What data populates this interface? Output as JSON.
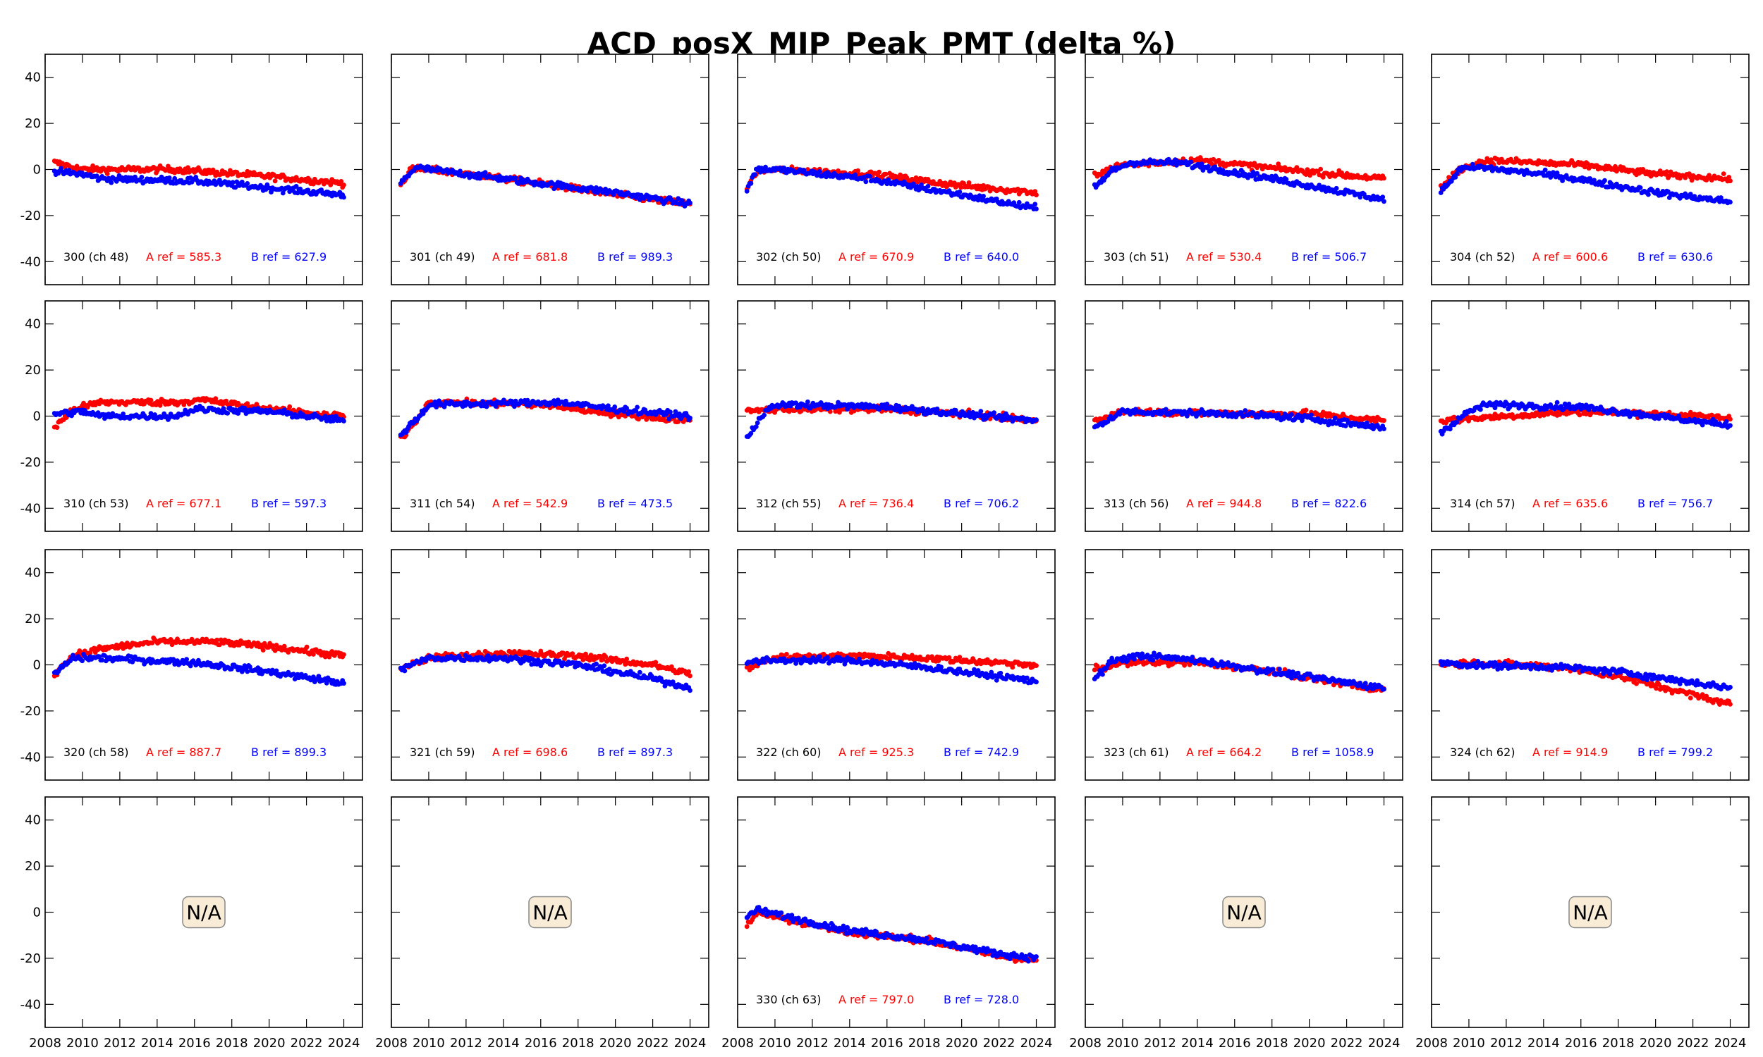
{
  "chart_data": {
    "type": "scatter",
    "title": "ACD_posX_MIP_Peak_PMT (delta %)",
    "xlim": [
      2008,
      2025
    ],
    "ylim": [
      -50,
      50
    ],
    "xticks": [
      "2008",
      "2010",
      "2012",
      "2014",
      "2016",
      "2018",
      "2020",
      "2022",
      "2024"
    ],
    "yticks": [
      "-40",
      "-20",
      "0",
      "20",
      "40"
    ],
    "grid": false,
    "colors": {
      "A": "#ff0000",
      "B": "#0000ff",
      "text": "#000000",
      "na_fill": "#f8ecd6",
      "na_border": "#888888"
    },
    "na_text": "N/A",
    "panels": [
      {
        "label": "300 (ch 48)",
        "a_ref": "A ref = 585.3",
        "b_ref": "B ref = 627.9",
        "A": [
          [
            2008.5,
            3
          ],
          [
            2010,
            0
          ],
          [
            2015,
            0
          ],
          [
            2020,
            -3
          ],
          [
            2024,
            -6
          ]
        ],
        "B": [
          [
            2008.5,
            -1
          ],
          [
            2010,
            -2
          ],
          [
            2011,
            -4
          ],
          [
            2016,
            -5
          ],
          [
            2020,
            -8
          ],
          [
            2024,
            -11
          ]
        ]
      },
      {
        "label": "301 (ch 49)",
        "a_ref": "A ref = 681.8",
        "b_ref": "B ref = 989.3",
        "A": [
          [
            2008.5,
            -7
          ],
          [
            2009,
            0
          ],
          [
            2010,
            0
          ],
          [
            2016,
            -6
          ],
          [
            2020,
            -11
          ],
          [
            2024,
            -15
          ]
        ],
        "B": [
          [
            2008.5,
            -6
          ],
          [
            2009.3,
            1
          ],
          [
            2010,
            0
          ],
          [
            2016,
            -6
          ],
          [
            2020,
            -10
          ],
          [
            2024,
            -15
          ]
        ]
      },
      {
        "label": "302 (ch 50)",
        "a_ref": "A ref = 670.9",
        "b_ref": "B ref = 640.0",
        "A": [
          [
            2008.5,
            -8
          ],
          [
            2009,
            -1
          ],
          [
            2010,
            0
          ],
          [
            2015,
            -2
          ],
          [
            2020,
            -7
          ],
          [
            2024,
            -10
          ]
        ],
        "B": [
          [
            2008.5,
            -9
          ],
          [
            2009,
            0
          ],
          [
            2010,
            0
          ],
          [
            2015,
            -4
          ],
          [
            2020,
            -11
          ],
          [
            2024,
            -17
          ]
        ]
      },
      {
        "label": "303 (ch 51)",
        "a_ref": "A ref = 530.4",
        "b_ref": "B ref = 506.7",
        "A": [
          [
            2008.5,
            -2
          ],
          [
            2010,
            2
          ],
          [
            2014,
            4
          ],
          [
            2020,
            -1
          ],
          [
            2024,
            -4
          ]
        ],
        "B": [
          [
            2008.5,
            -8
          ],
          [
            2009.5,
            0
          ],
          [
            2010.5,
            3
          ],
          [
            2013,
            3
          ],
          [
            2018,
            -4
          ],
          [
            2024,
            -13
          ]
        ]
      },
      {
        "label": "304 (ch 52)",
        "a_ref": "A ref = 600.6",
        "b_ref": "B ref = 630.6",
        "A": [
          [
            2008.5,
            -8
          ],
          [
            2009.5,
            0
          ],
          [
            2011,
            4
          ],
          [
            2016,
            2
          ],
          [
            2020,
            -2
          ],
          [
            2024,
            -4
          ]
        ],
        "B": [
          [
            2008.5,
            -10
          ],
          [
            2009.5,
            0
          ],
          [
            2010.5,
            1
          ],
          [
            2015,
            -3
          ],
          [
            2020,
            -10
          ],
          [
            2024,
            -14
          ]
        ]
      },
      {
        "label": "310 (ch 53)",
        "a_ref": "A ref = 677.1",
        "b_ref": "B ref = 597.3",
        "A": [
          [
            2008.5,
            -5
          ],
          [
            2009.5,
            3
          ],
          [
            2011,
            6
          ],
          [
            2015,
            6
          ],
          [
            2016.5,
            7
          ],
          [
            2020,
            3
          ],
          [
            2024,
            0
          ]
        ],
        "B": [
          [
            2008.5,
            1
          ],
          [
            2010,
            2
          ],
          [
            2011,
            0
          ],
          [
            2015,
            0
          ],
          [
            2016,
            3
          ],
          [
            2020,
            2
          ],
          [
            2024,
            -2
          ]
        ]
      },
      {
        "label": "311 (ch 54)",
        "a_ref": "A ref = 542.9",
        "b_ref": "B ref = 473.5",
        "A": [
          [
            2008.5,
            -10
          ],
          [
            2009.5,
            0
          ],
          [
            2010,
            6
          ],
          [
            2016,
            5
          ],
          [
            2020,
            1
          ],
          [
            2024,
            -2
          ]
        ],
        "B": [
          [
            2008.5,
            -8
          ],
          [
            2009.5,
            0
          ],
          [
            2010,
            5
          ],
          [
            2017,
            6
          ],
          [
            2020,
            3
          ],
          [
            2024,
            0
          ]
        ]
      },
      {
        "label": "312 (ch 55)",
        "a_ref": "A ref = 736.4",
        "b_ref": "B ref = 706.2",
        "A": [
          [
            2008.5,
            2
          ],
          [
            2010,
            3
          ],
          [
            2016,
            3
          ],
          [
            2020,
            1
          ],
          [
            2024,
            -2
          ]
        ],
        "B": [
          [
            2008.5,
            -10
          ],
          [
            2009.5,
            3
          ],
          [
            2010.5,
            5
          ],
          [
            2016,
            4
          ],
          [
            2020,
            1
          ],
          [
            2024,
            -2
          ]
        ]
      },
      {
        "label": "313 (ch 56)",
        "a_ref": "A ref = 944.8",
        "b_ref": "B ref = 822.6",
        "A": [
          [
            2008.5,
            -2
          ],
          [
            2010,
            2
          ],
          [
            2016,
            1
          ],
          [
            2020,
            1
          ],
          [
            2024,
            -2
          ]
        ],
        "B": [
          [
            2008.5,
            -5
          ],
          [
            2010,
            2
          ],
          [
            2016,
            1
          ],
          [
            2020,
            -1
          ],
          [
            2024,
            -5
          ]
        ]
      },
      {
        "label": "314 (ch 57)",
        "a_ref": "A ref = 635.6",
        "b_ref": "B ref = 756.7",
        "A": [
          [
            2008.5,
            -2
          ],
          [
            2010,
            -1
          ],
          [
            2016,
            2
          ],
          [
            2020,
            1
          ],
          [
            2024,
            -1
          ]
        ],
        "B": [
          [
            2008.5,
            -7
          ],
          [
            2010,
            2
          ],
          [
            2011,
            5
          ],
          [
            2016,
            4
          ],
          [
            2020,
            0
          ],
          [
            2024,
            -4
          ]
        ]
      },
      {
        "label": "320 (ch 58)",
        "a_ref": "A ref = 887.7",
        "b_ref": "B ref = 899.3",
        "A": [
          [
            2008.5,
            -4
          ],
          [
            2009.5,
            4
          ],
          [
            2011,
            7
          ],
          [
            2014,
            10
          ],
          [
            2017,
            10
          ],
          [
            2020,
            8
          ],
          [
            2024,
            4
          ]
        ],
        "B": [
          [
            2008.5,
            -4
          ],
          [
            2009.5,
            3
          ],
          [
            2011,
            3
          ],
          [
            2016,
            1
          ],
          [
            2020,
            -3
          ],
          [
            2024,
            -8
          ]
        ]
      },
      {
        "label": "321 (ch 59)",
        "a_ref": "A ref = 698.6",
        "b_ref": "B ref = 897.3",
        "A": [
          [
            2008.5,
            -2
          ],
          [
            2010,
            3
          ],
          [
            2014,
            5
          ],
          [
            2018,
            4
          ],
          [
            2022,
            0
          ],
          [
            2024,
            -4
          ]
        ],
        "B": [
          [
            2008.5,
            -2
          ],
          [
            2010,
            3
          ],
          [
            2014,
            3
          ],
          [
            2018,
            0
          ],
          [
            2022,
            -6
          ],
          [
            2024,
            -10
          ]
        ]
      },
      {
        "label": "322 (ch 60)",
        "a_ref": "A ref = 925.3",
        "b_ref": "B ref = 742.9",
        "A": [
          [
            2008.5,
            -1
          ],
          [
            2010,
            3
          ],
          [
            2014,
            4
          ],
          [
            2018,
            3
          ],
          [
            2022,
            1
          ],
          [
            2024,
            0
          ]
        ],
        "B": [
          [
            2008.5,
            1
          ],
          [
            2010,
            2
          ],
          [
            2014,
            2
          ],
          [
            2018,
            -1
          ],
          [
            2022,
            -5
          ],
          [
            2024,
            -7
          ]
        ]
      },
      {
        "label": "323 (ch 61)",
        "a_ref": "A ref = 664.2",
        "b_ref": "B ref = 1058.9",
        "A": [
          [
            2008.5,
            -2
          ],
          [
            2010,
            1
          ],
          [
            2014,
            1
          ],
          [
            2018,
            -3
          ],
          [
            2024,
            -11
          ]
        ],
        "B": [
          [
            2008.5,
            -6
          ],
          [
            2009.5,
            2
          ],
          [
            2011,
            4
          ],
          [
            2014,
            2
          ],
          [
            2018,
            -3
          ],
          [
            2024,
            -10
          ]
        ]
      },
      {
        "label": "324 (ch 62)",
        "a_ref": "A ref = 914.9",
        "b_ref": "B ref = 799.2",
        "A": [
          [
            2008.5,
            0
          ],
          [
            2010,
            1
          ],
          [
            2015,
            -1
          ],
          [
            2018,
            -5
          ],
          [
            2024,
            -17
          ]
        ],
        "B": [
          [
            2008.5,
            1
          ],
          [
            2010,
            0
          ],
          [
            2015,
            -1
          ],
          [
            2018,
            -3
          ],
          [
            2024,
            -10
          ]
        ]
      },
      {
        "na": true
      },
      {
        "na": true
      },
      {
        "label": "330 (ch 63)",
        "a_ref": "A ref = 797.0",
        "b_ref": "B ref = 728.0",
        "A": [
          [
            2008.5,
            -6
          ],
          [
            2009,
            0
          ],
          [
            2014,
            -9
          ],
          [
            2018,
            -12
          ],
          [
            2022,
            -19
          ],
          [
            2024,
            -21
          ]
        ],
        "B": [
          [
            2008.5,
            -2
          ],
          [
            2009,
            1
          ],
          [
            2014,
            -8
          ],
          [
            2018,
            -12
          ],
          [
            2022,
            -18
          ],
          [
            2024,
            -20
          ]
        ]
      },
      {
        "na": true
      },
      {
        "na": true
      }
    ]
  }
}
